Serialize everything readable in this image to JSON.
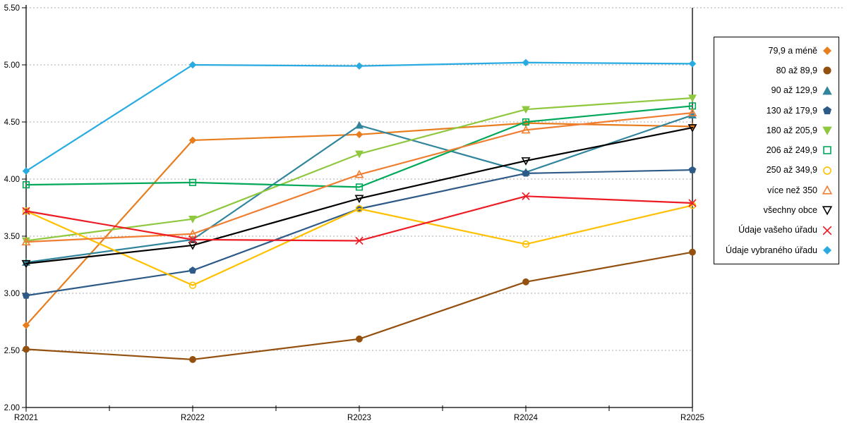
{
  "chart_data": {
    "type": "line",
    "title": "",
    "xlabel": "",
    "ylabel": "",
    "categories": [
      "R2021",
      "R2022",
      "R2023",
      "R2024",
      "R2025"
    ],
    "y_axis": {
      "min": 2.0,
      "max": 5.5,
      "step": 0.5
    },
    "y_tick_labels": [
      "2.00",
      "2.50",
      "3.00",
      "3.50",
      "4.00",
      "4.50",
      "5.00",
      "5.50"
    ],
    "grid": "horizontal-dotted",
    "gridline_color": "#ababab",
    "axis_color": "#000000",
    "legend_position": "right",
    "series": [
      {
        "name": "79,9 a méně",
        "color": "#e87d1e",
        "marker": "diamond",
        "filled": true,
        "values": [
          2.72,
          4.34,
          4.39,
          4.49,
          4.46
        ]
      },
      {
        "name": "80 až 89,9",
        "color": "#94500f",
        "marker": "circle",
        "filled": true,
        "values": [
          2.51,
          2.42,
          2.6,
          3.1,
          3.36
        ]
      },
      {
        "name": "90 až 129,9",
        "color": "#31859c",
        "marker": "triangle-up",
        "filled": true,
        "values": [
          3.27,
          3.47,
          4.47,
          4.06,
          4.56
        ]
      },
      {
        "name": "130 až 179,9",
        "color": "#2e5a87",
        "marker": "pentagon",
        "filled": true,
        "values": [
          2.98,
          3.2,
          3.74,
          4.05,
          4.08
        ]
      },
      {
        "name": "180 až 205,9",
        "color": "#8fc73e",
        "marker": "triangle-down",
        "filled": true,
        "values": [
          3.46,
          3.65,
          4.22,
          4.61,
          4.71
        ]
      },
      {
        "name": "206 až 249,9",
        "color": "#00a859",
        "marker": "square",
        "filled": false,
        "values": [
          3.95,
          3.97,
          3.93,
          4.5,
          4.64
        ]
      },
      {
        "name": "250 až 349,9",
        "color": "#ffc000",
        "marker": "circle",
        "filled": false,
        "values": [
          3.72,
          3.07,
          3.74,
          3.43,
          3.77
        ]
      },
      {
        "name": "více než 350",
        "color": "#f07e32",
        "marker": "triangle-up",
        "filled": false,
        "values": [
          3.45,
          3.52,
          4.04,
          4.43,
          4.58
        ]
      },
      {
        "name": "všechny obce",
        "color": "#000000",
        "marker": "triangle-down",
        "filled": false,
        "values": [
          3.26,
          3.42,
          3.83,
          4.16,
          4.45
        ]
      },
      {
        "name": "Údaje vašeho úřadu",
        "color": "#ed1c24",
        "marker": "x",
        "filled": false,
        "values": [
          3.72,
          3.47,
          3.46,
          3.85,
          3.79
        ]
      },
      {
        "name": "Údaje vybraného úřadu",
        "color": "#29abe2",
        "marker": "diamond",
        "filled": true,
        "values": [
          4.07,
          5.0,
          4.99,
          5.02,
          5.01
        ]
      }
    ]
  }
}
